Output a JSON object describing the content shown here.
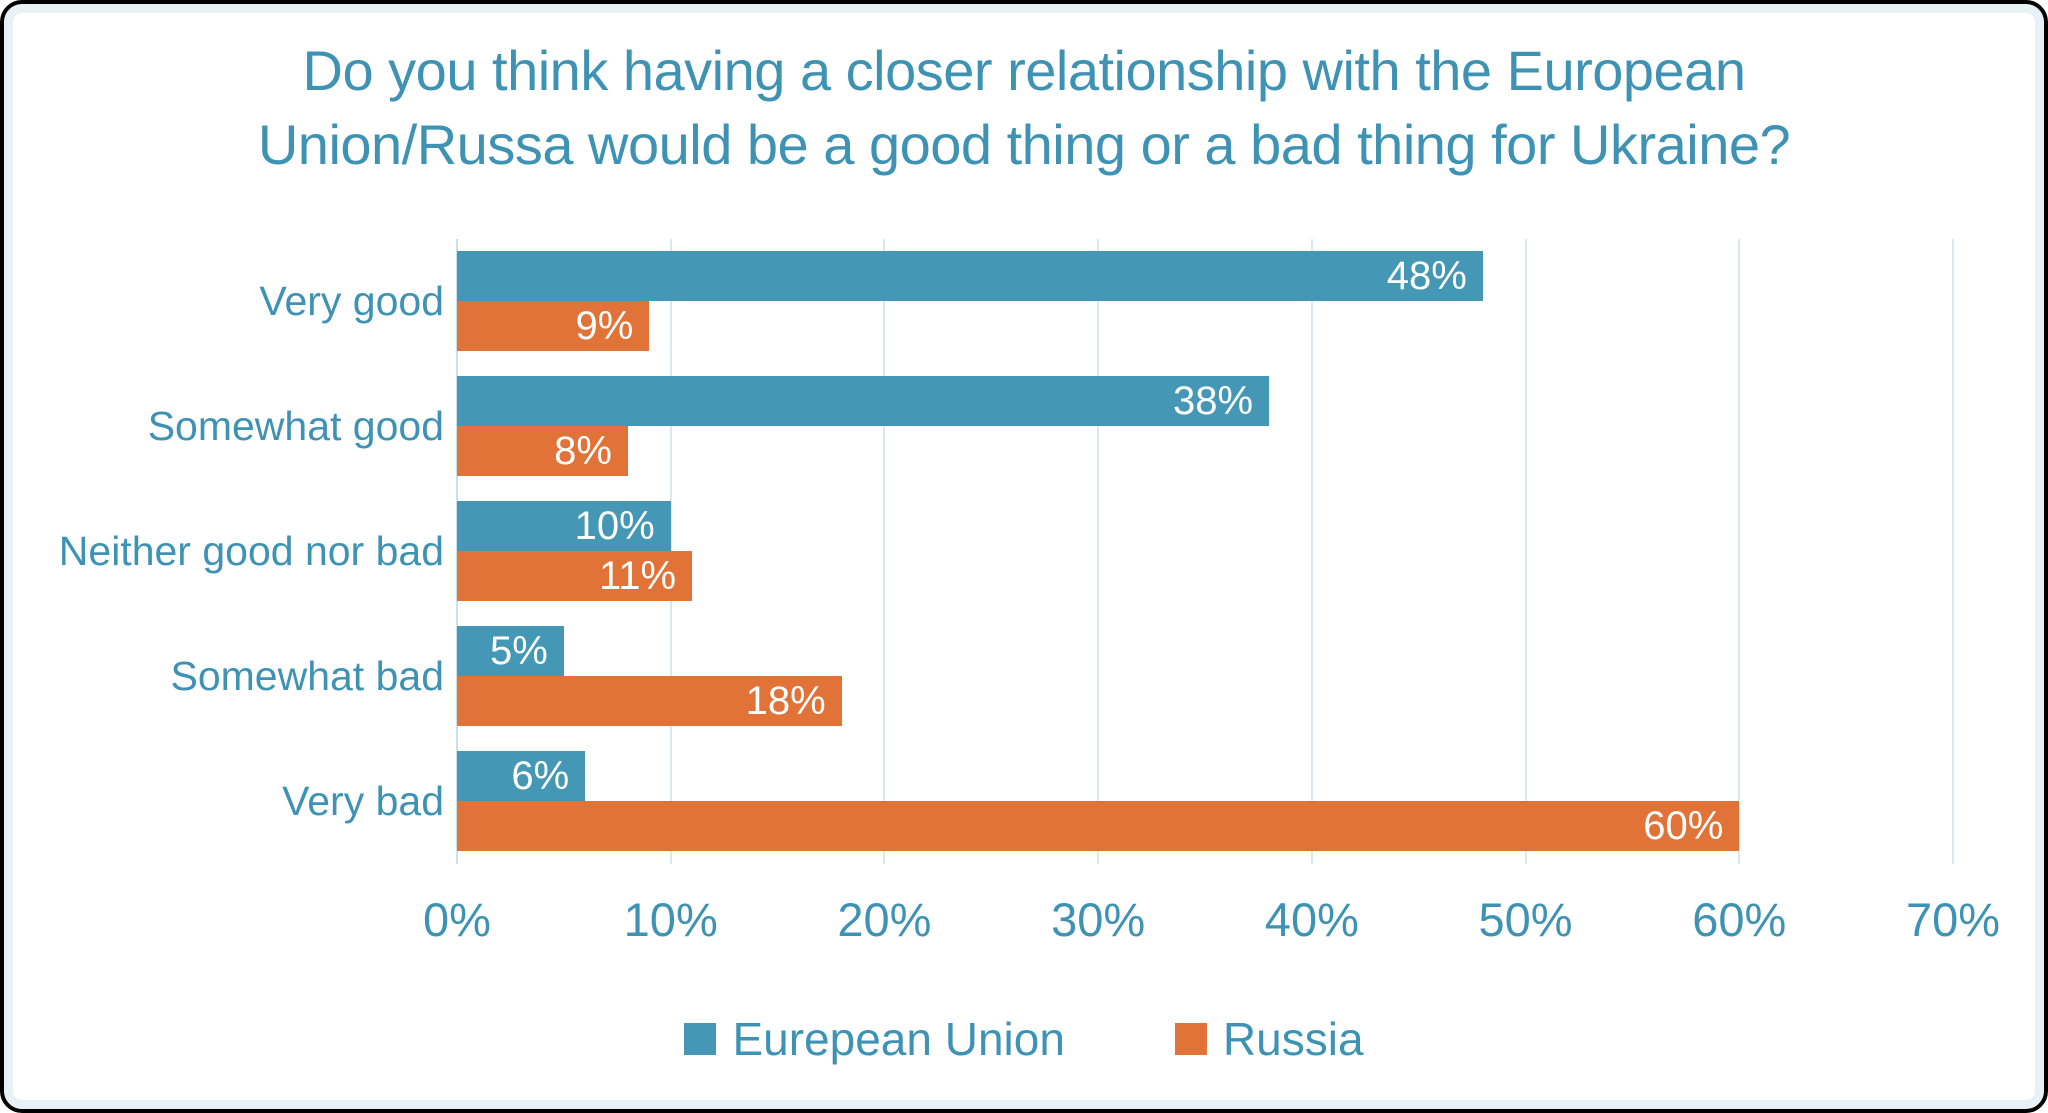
{
  "page": {
    "background": "#ffffff",
    "frame_border_color": "#000000",
    "frame_inner_edge_color": "#e7f1f6"
  },
  "chart_data": {
    "type": "bar",
    "orientation": "horizontal",
    "title": "Do you think having a closer relationship with the European Union/Russa would be a good thing or a bad thing for Ukraine?",
    "title_lines": [
      "Do you think having a closer relationship with the European",
      "Union/Russa would be a good thing or a bad thing for Ukraine?"
    ],
    "categories": [
      "Very good",
      "Somewhat good",
      "Neither good nor bad",
      "Somewhat bad",
      "Very bad"
    ],
    "series": [
      {
        "name": "Eurepean Union",
        "color": "#4598B5",
        "values": [
          48,
          38,
          10,
          5,
          6
        ]
      },
      {
        "name": "Russia",
        "color": "#E17339",
        "values": [
          9,
          8,
          11,
          18,
          60
        ]
      }
    ],
    "value_suffix": "%",
    "xlim": [
      0,
      70
    ],
    "x_ticks": [
      "0%",
      "10%",
      "20%",
      "30%",
      "40%",
      "50%",
      "60%",
      "70%"
    ],
    "grid": true,
    "legend_position": "bottom",
    "colors": {
      "title_text": "#3E93B5",
      "category_text": "#3E93B5",
      "tick_text": "#3E93B5",
      "legend_text": "#3E93B5",
      "value_label_text": "#ffffff",
      "gridline": "#D9E8F2",
      "zero_axis_line": "#C9E1EC"
    }
  }
}
